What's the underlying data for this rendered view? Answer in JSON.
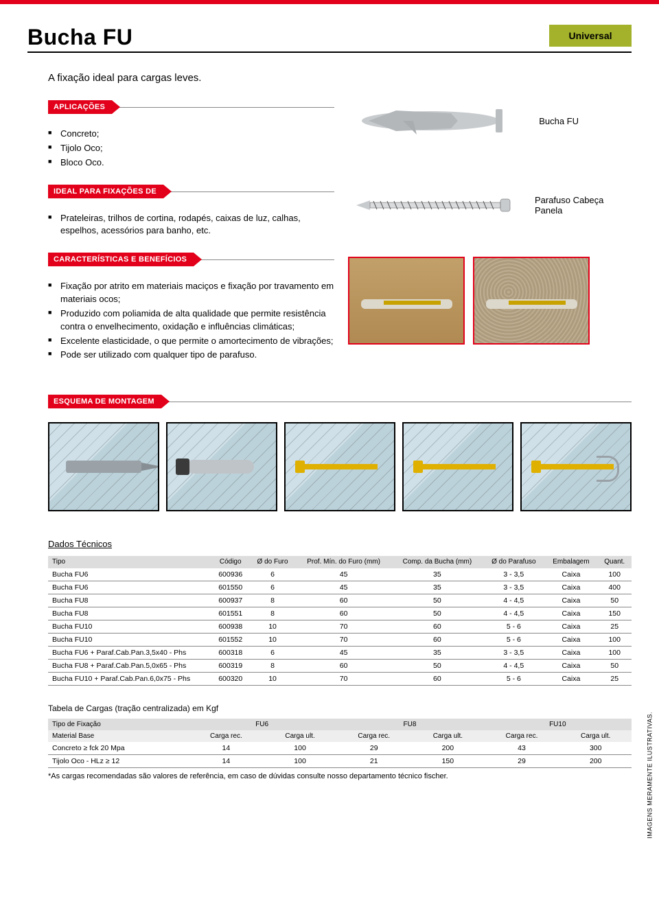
{
  "colors": {
    "accent": "#e2001a",
    "badge_bg": "#a3b22a"
  },
  "header": {
    "title": "Bucha FU",
    "badge": "Universal"
  },
  "subtitle": "A fixação ideal para cargas leves.",
  "sections": {
    "aplicacoes": {
      "label": "APLICAÇÕES",
      "items": [
        "Concreto;",
        "Tijolo Oco;",
        "Bloco Oco."
      ]
    },
    "ideal": {
      "label": "IDEAL PARA FIXAÇÕES DE",
      "items": [
        "Prateleiras, trilhos de cortina, rodapés, caixas de luz, calhas, espelhos, acessórios para banho, etc."
      ]
    },
    "caracteristicas": {
      "label": "CARACTERÍSTICAS E BENEFÍCIOS",
      "items": [
        "Fixação por atrito em materiais maciços e fixação por travamento em materiais ocos;",
        "Produzido com poliamida de alta qualidade que permite resistência contra o envelhecimento, oxidação e influências climáticas;",
        "Excelente elasticidade, o que permite o amortecimento de vibrações;",
        "Pode ser utilizado com qualquer tipo de parafuso."
      ]
    },
    "esquema": {
      "label": "ESQUEMA DE MONTAGEM"
    }
  },
  "figures": {
    "product": {
      "caption": "Bucha FU"
    },
    "screw": {
      "caption": "Parafuso Cabeça Panela"
    }
  },
  "dados": {
    "title": "Dados Técnicos",
    "columns": [
      "Tipo",
      "Código",
      "Ø do Furo",
      "Prof. Mín. do Furo (mm)",
      "Comp. da Bucha (mm)",
      "Ø do Parafuso",
      "Embalagem",
      "Quant."
    ],
    "rows": [
      [
        "Bucha FU6",
        "600936",
        "6",
        "45",
        "35",
        "3 - 3,5",
        "Caixa",
        "100"
      ],
      [
        "Bucha FU6",
        "601550",
        "6",
        "45",
        "35",
        "3 - 3,5",
        "Caixa",
        "400"
      ],
      [
        "Bucha FU8",
        "600937",
        "8",
        "60",
        "50",
        "4 - 4,5",
        "Caixa",
        "50"
      ],
      [
        "Bucha FU8",
        "601551",
        "8",
        "60",
        "50",
        "4 - 4,5",
        "Caixa",
        "150"
      ],
      [
        "Bucha FU10",
        "600938",
        "10",
        "70",
        "60",
        "5 - 6",
        "Caixa",
        "25"
      ],
      [
        "Bucha FU10",
        "601552",
        "10",
        "70",
        "60",
        "5 - 6",
        "Caixa",
        "100"
      ],
      [
        "Bucha FU6 + Paraf.Cab.Pan.3,5x40 - Phs",
        "600318",
        "6",
        "45",
        "35",
        "3 - 3,5",
        "Caixa",
        "100"
      ],
      [
        "Bucha FU8 + Paraf.Cab.Pan.5,0x65 - Phs",
        "600319",
        "8",
        "60",
        "50",
        "4 - 4,5",
        "Caixa",
        "50"
      ],
      [
        "Bucha FU10 + Paraf.Cab.Pan.6,0x75 - Phs",
        "600320",
        "10",
        "70",
        "60",
        "5 - 6",
        "Caixa",
        "25"
      ]
    ]
  },
  "loads": {
    "title": "Tabela de Cargas (tração centralizada) em Kgf",
    "group_header": "Tipo de Fixação",
    "groups": [
      "FU6",
      "FU8",
      "FU10"
    ],
    "sub_header_first": "Material Base",
    "sub_headers": [
      "Carga rec.",
      "Carga ult.",
      "Carga rec.",
      "Carga ult.",
      "Carga rec.",
      "Carga ult."
    ],
    "rows": [
      [
        "Concreto ≥ fck 20 Mpa",
        "14",
        "100",
        "29",
        "200",
        "43",
        "300"
      ],
      [
        "Tijolo Oco - HLz ≥ 12",
        "14",
        "100",
        "21",
        "150",
        "29",
        "200"
      ]
    ],
    "footnote": "*As cargas recomendadas são valores de referência, em caso de dúvidas consulte nosso departamento técnico fischer."
  },
  "side_note": "IMAGENS MERAMENTE ILUSTRATIVAS."
}
